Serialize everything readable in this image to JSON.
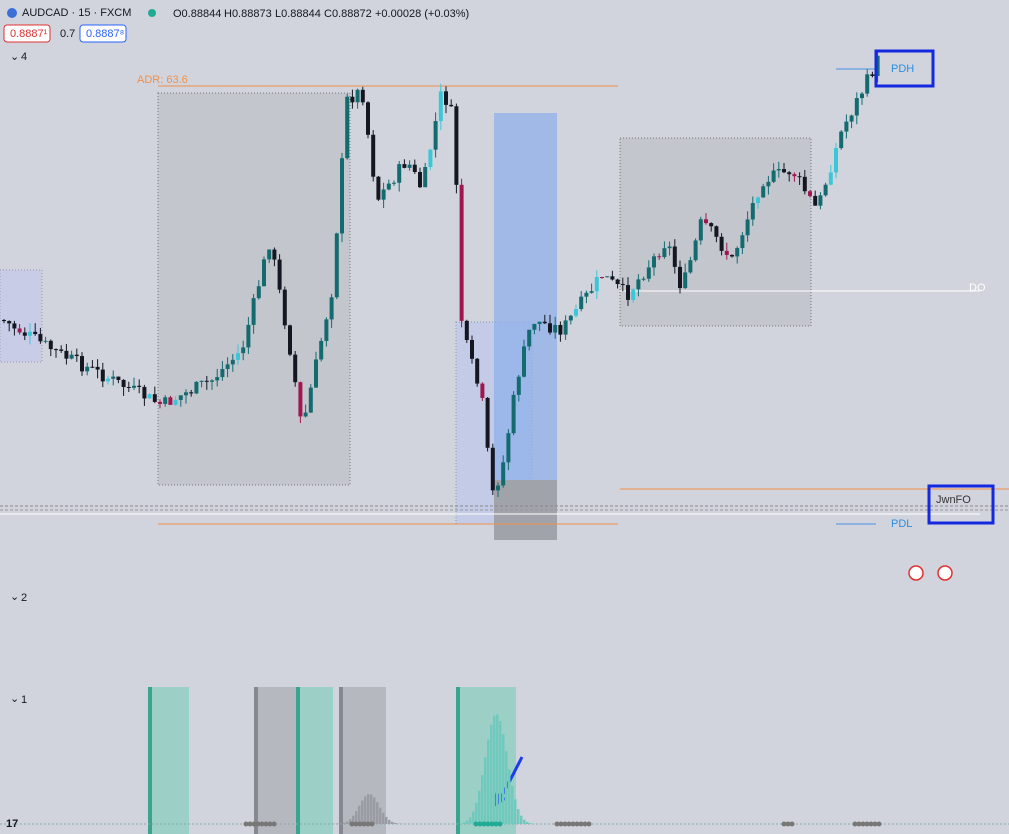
{
  "header": {
    "symbol": "AUDCAD · 15 · FXCM",
    "open": "O0.88844",
    "high": "H0.88873",
    "low": "L0.88844",
    "close": "C0.88872",
    "change": "+0.00028 (+0.03%)"
  },
  "trade": {
    "sell": "0.8887¹",
    "spread": "0.7",
    "buy": "0.8887⁸"
  },
  "panes": [
    "4",
    "2",
    "1"
  ],
  "labels": {
    "adr": "ADR: 63.6",
    "pdh": "PDH",
    "pdl": "PDL",
    "do": "DO",
    "jwn": "JwnFO"
  }
}
